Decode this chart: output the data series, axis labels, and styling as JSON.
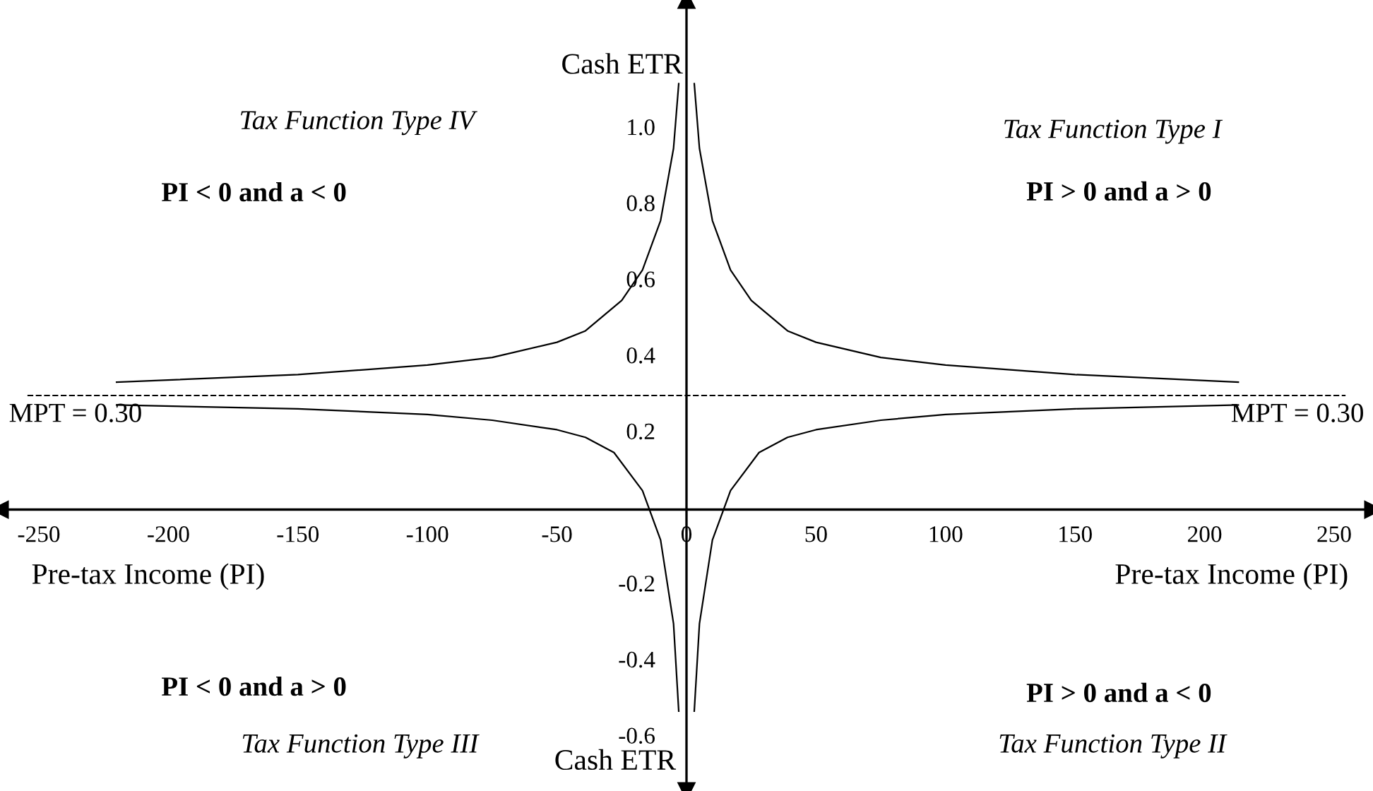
{
  "chart_data": {
    "type": "line",
    "xlabel": "Pre-tax Income (PI)",
    "ylabel": "Cash ETR",
    "annotations": [
      "Tax Function Type IV",
      "PI < 0 and a < 0",
      "Tax Function Type I",
      "PI > 0 and a > 0",
      "PI < 0 and a > 0",
      "Tax Function Type III",
      "PI > 0 and a < 0",
      "Tax Function Type II",
      "Cash ETR",
      "Pre-tax Income (PI)",
      "MPT = 0.30"
    ],
    "series": [
      {
        "color": "#000000",
        "x": [
          3,
          5,
          10,
          17,
          25,
          39,
          50,
          75,
          100,
          150,
          213
        ],
        "values": [
          1.12,
          0.95,
          0.76,
          0.63,
          0.55,
          0.47,
          0.44,
          0.4,
          0.38,
          0.355,
          0.335
        ]
      },
      {
        "color": "#000000",
        "x": [
          -220,
          -150,
          -100,
          -75,
          -50,
          -39,
          -25,
          -17,
          -10,
          -5,
          -3
        ],
        "values": [
          0.335,
          0.355,
          0.38,
          0.4,
          0.44,
          0.47,
          0.55,
          0.63,
          0.76,
          0.95,
          1.12
        ]
      },
      {
        "color": "#000000",
        "x": [
          3,
          5,
          10,
          17,
          28,
          39,
          50,
          75,
          100,
          150,
          213
        ],
        "values": [
          -0.53,
          -0.3,
          -0.08,
          0.05,
          0.15,
          0.19,
          0.21,
          0.235,
          0.25,
          0.265,
          0.275
        ]
      },
      {
        "color": "#000000",
        "x": [
          -220,
          -150,
          -100,
          -75,
          -50,
          -39,
          -28,
          -17,
          -10,
          -5,
          -3
        ],
        "values": [
          0.275,
          0.265,
          0.25,
          0.235,
          0.21,
          0.19,
          0.15,
          0.05,
          -0.08,
          -0.3,
          -0.53
        ]
      }
    ],
    "ref_lines": [
      {
        "axis": "y",
        "value": 0.3,
        "label": "MPT = 0.30",
        "line_style": "dashed",
        "color": "#000000"
      }
    ],
    "xlim": [
      -265,
      265
    ],
    "ylim": [
      -0.74,
      1.34
    ],
    "xticks": [
      -250,
      -200,
      -150,
      -100,
      -50,
      0,
      50,
      100,
      150,
      200,
      250
    ],
    "yticks": [
      {
        "value": 1.0,
        "label": "1.0"
      },
      0.8,
      0.6,
      0.4,
      0.2,
      -0.2,
      -0.4,
      -0.6
    ],
    "grid": false,
    "legend": false,
    "marker": "none",
    "line_style": "solid"
  }
}
